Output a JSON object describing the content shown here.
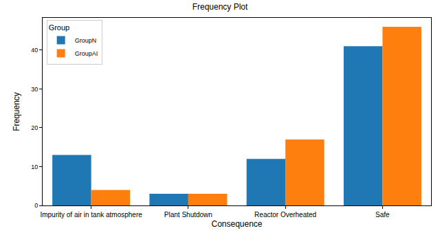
{
  "chart_data": {
    "type": "bar",
    "title": "Frequency Plot",
    "x_label": "Consequence",
    "y_label": "Frequency",
    "legend_title": "Group",
    "legend": "upper left",
    "grid": false,
    "categories": [
      "Impurity of air in tank atmosphere",
      "Plant Shutdown",
      "Reactor Overheated",
      "Safe"
    ],
    "series": [
      {
        "name": "GroupN",
        "color": "#1f77b4",
        "values": [
          13,
          3,
          12,
          41
        ]
      },
      {
        "name": "GroupAI",
        "color": "#ff7f0e",
        "values": [
          4,
          3,
          17,
          46
        ]
      }
    ],
    "ylim": [
      0,
      48.3
    ],
    "yticks": [
      0,
      10,
      20,
      30,
      40
    ]
  }
}
